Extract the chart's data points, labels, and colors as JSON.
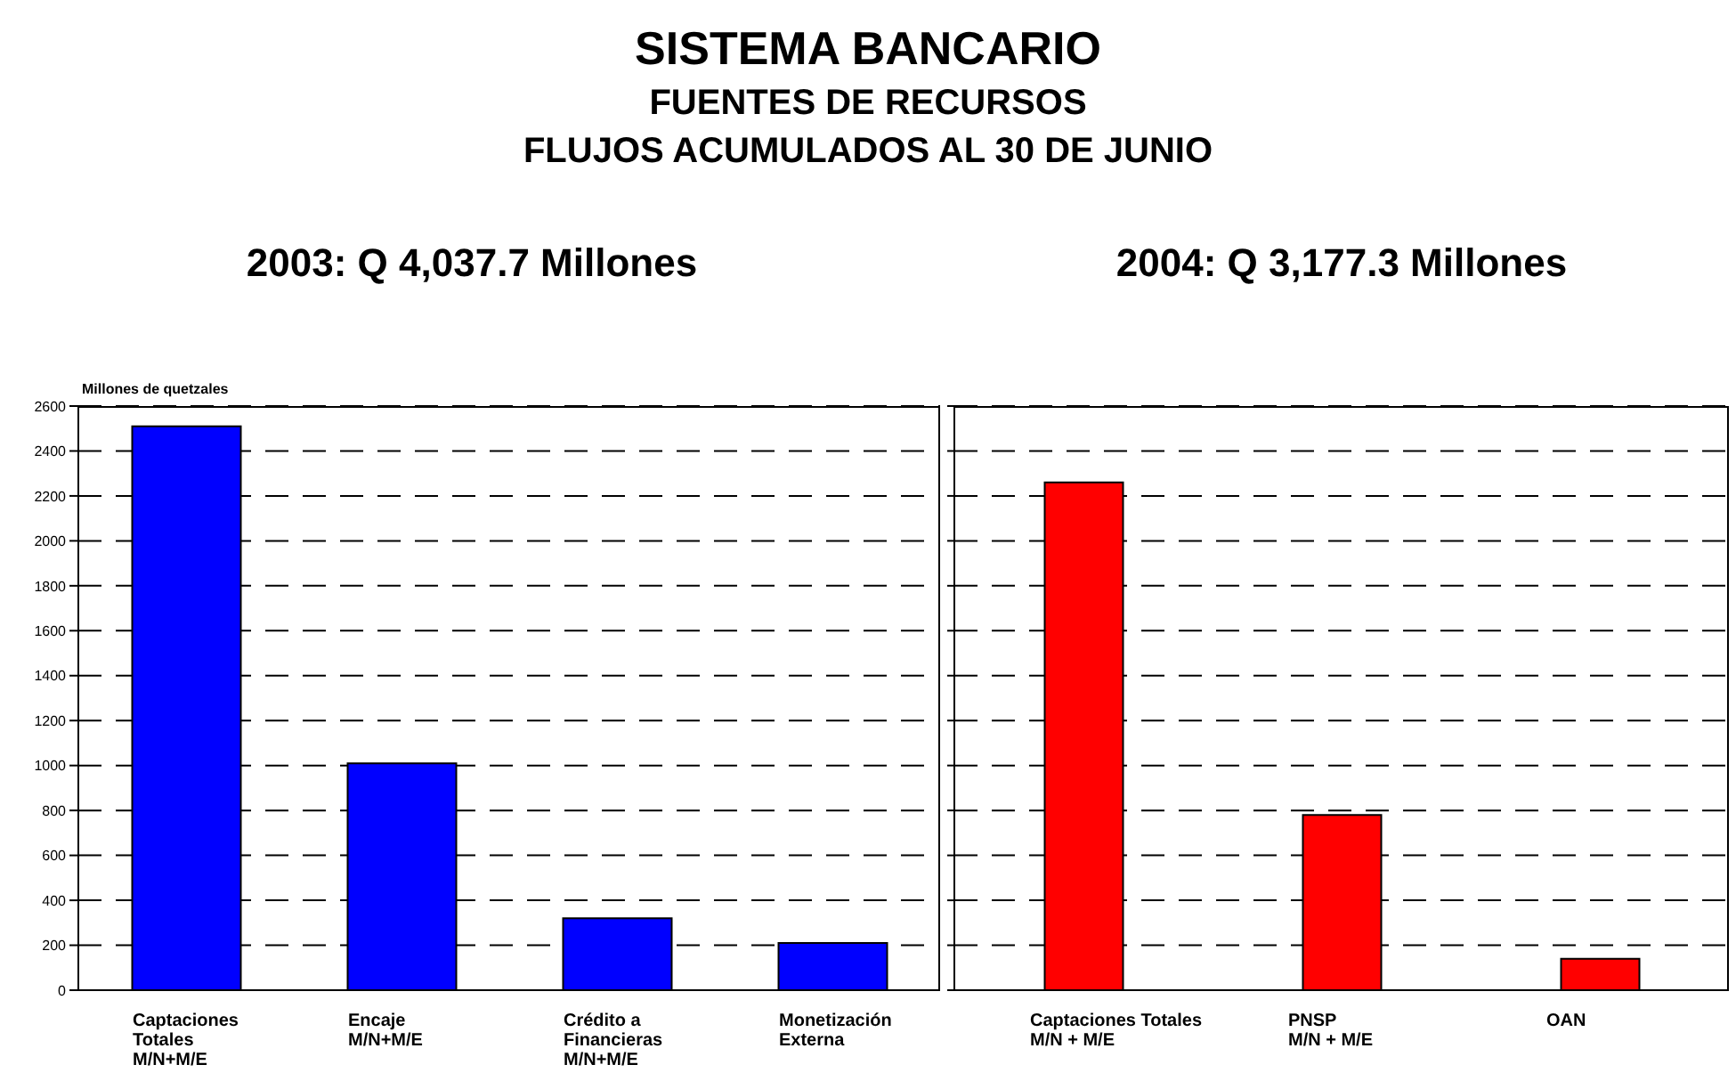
{
  "chart_data": [
    {
      "type": "bar",
      "title": "SISTEMA BANCARIO",
      "subtitle": "FUENTES DE RECURSOS\nFLUJOS ACUMULADOS AL 30 DE JUNIO",
      "annotations": [
        "2003: Q 4,037.7 Millones"
      ],
      "ylabel": "Millones de quetzales",
      "categories": [
        "Captaciones\nTotales\nM/N+M/E",
        "Encaje\nM/N+M/E",
        "Crédito a\nFinancieras\nM/N+M/E",
        "Monetización\nExterna"
      ],
      "values": [
        2510,
        1010,
        320,
        210
      ],
      "color": "#0000ff",
      "ylim": [
        0,
        2600
      ],
      "yticks": [
        0,
        200,
        400,
        600,
        800,
        1000,
        1200,
        1400,
        1600,
        1800,
        2000,
        2200,
        2400,
        2600
      ],
      "grid": "y"
    },
    {
      "type": "bar",
      "annotations": [
        "2004: Q 3,177.3 Millones"
      ],
      "categories": [
        "Captaciones Totales\nM/N + M/E",
        "PNSP\nM/N + M/E",
        "OAN"
      ],
      "values": [
        2260,
        780,
        140
      ],
      "color": "#ff0000",
      "ylim": [
        0,
        2600
      ],
      "yticks": [
        0,
        200,
        400,
        600,
        800,
        1000,
        1200,
        1400,
        1600,
        1800,
        2000,
        2200,
        2400,
        2600
      ],
      "grid": "y",
      "tick_labels": "x"
    }
  ]
}
